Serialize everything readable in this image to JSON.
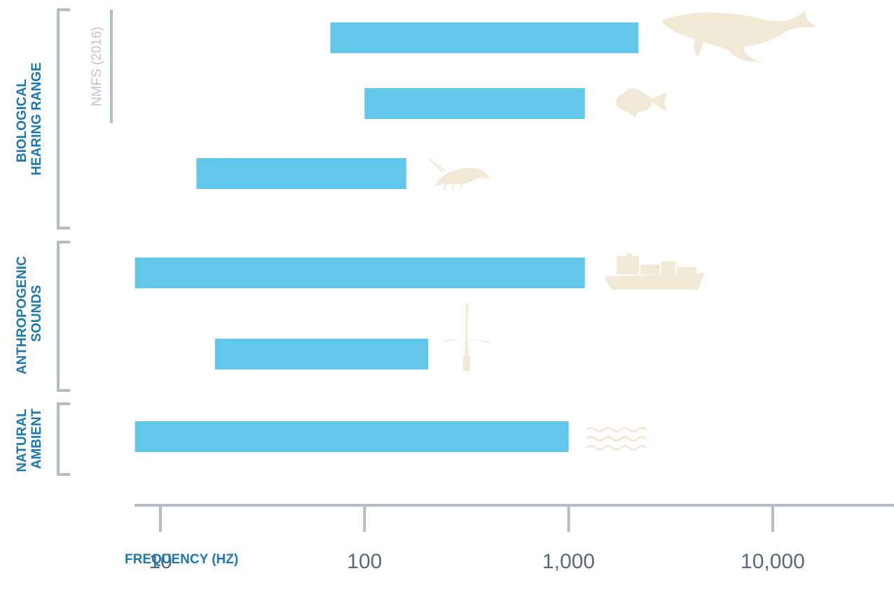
{
  "chart_data": {
    "type": "bar",
    "orientation": "horizontal-range",
    "xlabel": "FREQUENCY (HZ)",
    "xscale": "log",
    "xlim": [
      7.5,
      40000
    ],
    "xticks": [
      {
        "value": 10,
        "label": "10"
      },
      {
        "value": 100,
        "label": "100"
      },
      {
        "value": 1000,
        "label": "1,000"
      },
      {
        "value": 10000,
        "label": "10,000"
      }
    ],
    "groups": [
      {
        "label_lines": [
          "BIOLOGICAL",
          "HEARING RANGE"
        ],
        "rows": [
          0,
          2
        ]
      },
      {
        "label_lines": [
          "ANTHROPOGENIC",
          "SOUNDS"
        ],
        "rows": [
          3,
          4
        ]
      },
      {
        "label_lines": [
          "NATURAL",
          "AMBIENT"
        ],
        "rows": [
          5,
          5
        ]
      }
    ],
    "source_note": "NMFS (2016)",
    "bars": [
      {
        "icon": "whale-icon",
        "low": 68,
        "high": 2200
      },
      {
        "icon": "fish-icon",
        "low": 100,
        "high": 1200
      },
      {
        "icon": "shrimp-icon",
        "low": 15,
        "high": 160
      },
      {
        "icon": "ship-icon",
        "low": 7.5,
        "high": 1200
      },
      {
        "icon": "wind-turbine-icon",
        "low": 18.5,
        "high": 205
      },
      {
        "icon": "waves-icon",
        "low": 7.5,
        "high": 1000
      }
    ],
    "colors": {
      "bar": "#63c6eb",
      "axis": "#b4bcc4",
      "label": "#1a78b6",
      "icon": "#f2e8d6",
      "source": "#c2c6ca"
    },
    "grid": false,
    "legend": "none"
  }
}
